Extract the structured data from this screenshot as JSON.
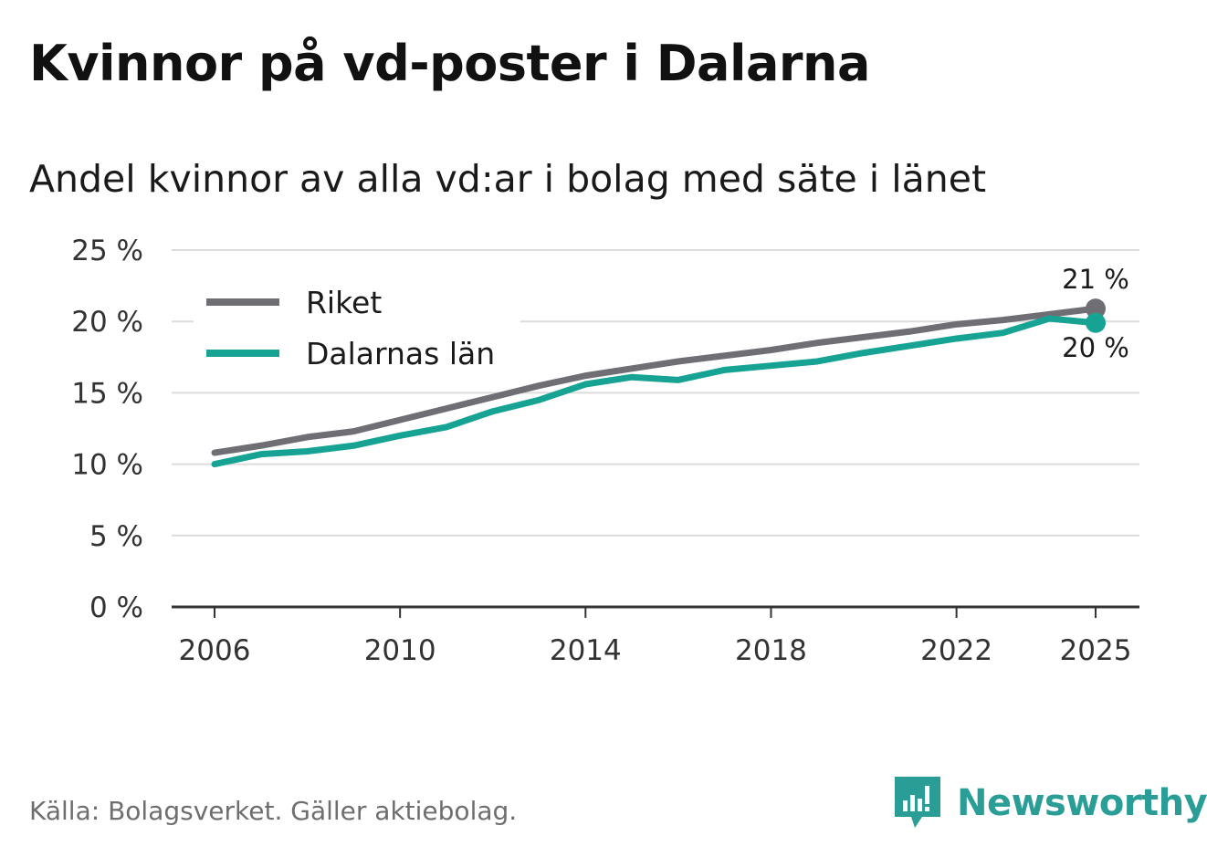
{
  "title": "Kvinnor på vd-poster i Dalarna",
  "subtitle": "Andel kvinnor av alla vd:ar i bolag med säte i länet",
  "source": "Källa: Bolagsverket. Gäller aktiebolag.",
  "brand": {
    "name": "Newsworthy",
    "icon": "newsworthy-logo-icon",
    "color": "#2a9d96"
  },
  "chart_data": {
    "type": "line",
    "title": "Kvinnor på vd-poster i Dalarna",
    "subtitle": "Andel kvinnor av alla vd:ar i bolag med säte i länet",
    "xlabel": "",
    "ylabel": "",
    "x": [
      2006,
      2007,
      2008,
      2009,
      2010,
      2011,
      2012,
      2013,
      2014,
      2015,
      2016,
      2017,
      2018,
      2019,
      2020,
      2021,
      2022,
      2023,
      2024,
      2025
    ],
    "x_ticks": [
      2006,
      2010,
      2014,
      2018,
      2022,
      2025
    ],
    "x_tick_labels": [
      "2006",
      "2010",
      "2014",
      "2018",
      "2022",
      "2025"
    ],
    "y_ticks": [
      0,
      5,
      10,
      15,
      20,
      25
    ],
    "y_tick_labels": [
      "0 %",
      "5 %",
      "10 %",
      "15 %",
      "20 %",
      "25 %"
    ],
    "ylim": [
      0,
      25
    ],
    "grid": true,
    "legend_position": "top-left",
    "series": [
      {
        "name": "Riket",
        "color": "#6f6e74",
        "values": [
          10.8,
          11.3,
          11.9,
          12.3,
          13.1,
          13.9,
          14.7,
          15.5,
          16.2,
          16.7,
          17.2,
          17.6,
          18.0,
          18.5,
          18.9,
          19.3,
          19.8,
          20.1,
          20.5,
          20.9
        ],
        "end_label": "21 %"
      },
      {
        "name": "Dalarnas län",
        "color": "#16a394",
        "values": [
          10.0,
          10.7,
          10.9,
          11.3,
          12.0,
          12.6,
          13.7,
          14.5,
          15.6,
          16.1,
          15.9,
          16.6,
          16.9,
          17.2,
          17.8,
          18.3,
          18.8,
          19.2,
          20.2,
          19.9
        ],
        "end_label": "20 %"
      }
    ]
  }
}
